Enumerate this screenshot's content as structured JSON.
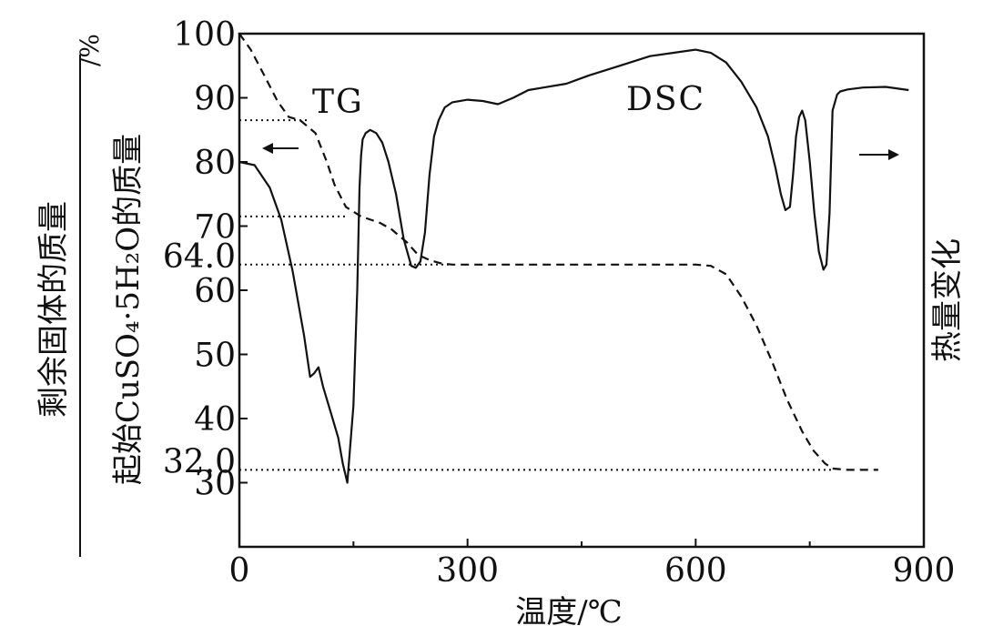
{
  "chart_data": {
    "type": "line",
    "xlabel": "温度/℃",
    "y_left_label": {
      "numerator": "剩余固体的质量",
      "denominator": "起始CuSO₄·5H₂O的质量",
      "unit": "/%"
    },
    "y_right_label": "热量变化",
    "xlim": [
      0,
      900
    ],
    "ylim": [
      20,
      100
    ],
    "x_ticks": [
      "0",
      "300",
      "600",
      "900"
    ],
    "y_ticks": [
      "100",
      "90",
      "80",
      "70",
      "60",
      "50",
      "40",
      "30"
    ],
    "y_ticks_values": [
      100,
      90,
      80,
      70,
      60,
      50,
      40,
      30
    ],
    "special_y_ticks": [
      "64.0",
      "32.0"
    ],
    "special_y_values": [
      64.0,
      32.0
    ],
    "curve_labels": {
      "tg": "TG",
      "dsc": "DSC"
    },
    "series": [
      {
        "name": "TG",
        "style": "dashed",
        "x": [
          0,
          15,
          35,
          50,
          65,
          80,
          100,
          115,
          125,
          140,
          160,
          185,
          200,
          220,
          235,
          250,
          265,
          280,
          300,
          400,
          500,
          600,
          620,
          640,
          660,
          680,
          700,
          720,
          740,
          755,
          770,
          780,
          800,
          840
        ],
        "y": [
          100,
          97.5,
          93,
          89.5,
          87,
          86.5,
          84.5,
          80,
          76.5,
          73,
          71.5,
          70.5,
          69.5,
          67.5,
          65.5,
          64.7,
          64.2,
          64.0,
          64.0,
          64.0,
          64.0,
          64.0,
          63.8,
          62.5,
          59.0,
          54.5,
          49.0,
          43.0,
          38.0,
          35.0,
          33.0,
          32.2,
          32.0,
          32.0
        ]
      },
      {
        "name": "DSC",
        "style": "solid",
        "x": [
          0,
          20,
          40,
          55,
          70,
          85,
          93,
          98,
          104,
          110,
          120,
          130,
          136,
          142,
          150,
          155,
          158,
          160,
          162,
          166,
          172,
          180,
          188,
          196,
          206,
          216,
          226,
          232,
          238,
          244,
          250,
          256,
          262,
          270,
          280,
          300,
          320,
          340,
          360,
          380,
          400,
          430,
          460,
          500,
          540,
          570,
          600,
          620,
          640,
          660,
          680,
          695,
          705,
          712,
          718,
          724,
          728,
          732,
          736,
          740,
          744,
          750,
          756,
          762,
          768,
          772,
          776,
          780,
          786,
          790,
          800,
          820,
          850,
          880
        ],
        "y": [
          80,
          79.5,
          76,
          71,
          63,
          53,
          46.5,
          47,
          48,
          45,
          41,
          37,
          33,
          30,
          42,
          60,
          76,
          81,
          83.5,
          84.5,
          85,
          84.5,
          83,
          80,
          75,
          68,
          63.8,
          63.5,
          64.5,
          69,
          78,
          84,
          86.5,
          88.5,
          89.3,
          89.7,
          89.5,
          89,
          90,
          91.2,
          91.6,
          92.2,
          93.5,
          95,
          96.5,
          97,
          97.5,
          97,
          95.5,
          92.5,
          88.5,
          84,
          79,
          75,
          72.5,
          73,
          78,
          84,
          87,
          88,
          86.5,
          80,
          72,
          66,
          63.2,
          64,
          72,
          88,
          90.5,
          91,
          91.3,
          91.6,
          91.7,
          91.2
        ]
      }
    ],
    "grid": false,
    "legend": "none"
  }
}
